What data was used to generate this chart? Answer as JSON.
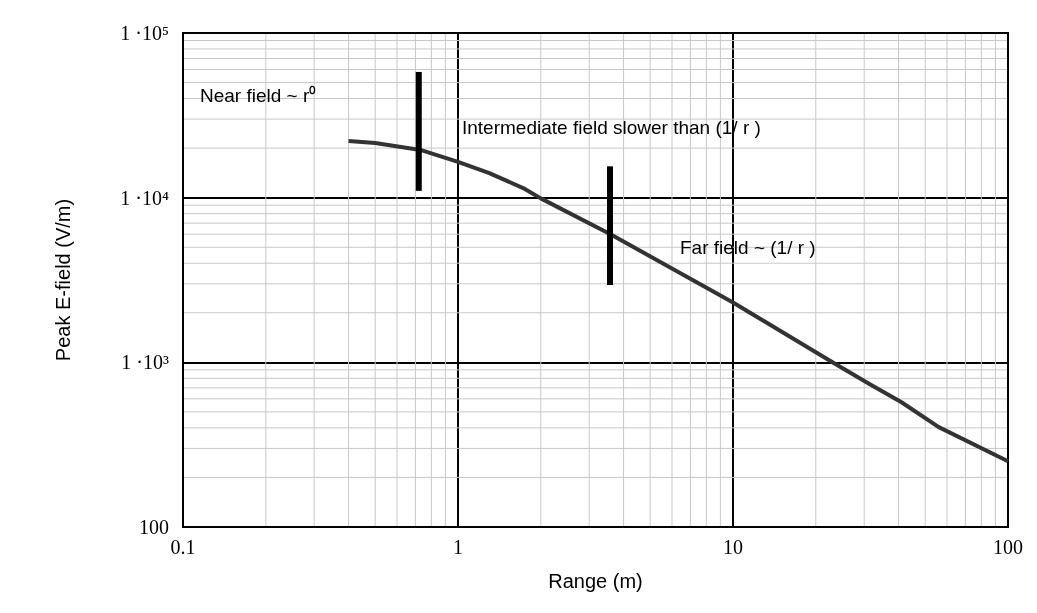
{
  "chart_data": {
    "type": "line",
    "xlabel": "Range (m)",
    "ylabel": "Peak E-field (V/m)",
    "log": "xy",
    "grid": true,
    "marker": "none",
    "line_style": "solid",
    "xlim": [
      0.1,
      100
    ],
    "xticks": [
      0.1,
      1,
      10,
      100
    ],
    "ylim": [
      100,
      100000
    ],
    "yticks": [
      100,
      {
        "value": 1000,
        "label": "1 ·10³"
      },
      {
        "value": 10000,
        "label": "1 ·10⁴"
      },
      {
        "value": 100000,
        "label": "1 ·10⁵"
      }
    ],
    "series": [
      {
        "color": "#333333",
        "x": [
          0.4,
          0.5,
          0.73,
          1,
          1.3,
          1.75,
          2,
          3.6,
          10,
          23,
          31,
          41,
          56,
          100
        ],
        "values": [
          22100,
          21500,
          19500,
          16500,
          14100,
          11300,
          9900,
          5970,
          2310,
          1000,
          747,
          572,
          404,
          251
        ]
      },
      {
        "color": "#000000",
        "x": [
          0.72,
          0.72
        ],
        "values": [
          58000,
          11000
        ]
      },
      {
        "color": "#000000",
        "x": [
          3.57,
          3.57
        ],
        "values": [
          15500,
          2950
        ]
      }
    ],
    "annotations": [
      "Near field ~ r⁰",
      "Intermediate field slower than (1/ r )",
      "Far field ~ (1/ r )"
    ]
  }
}
